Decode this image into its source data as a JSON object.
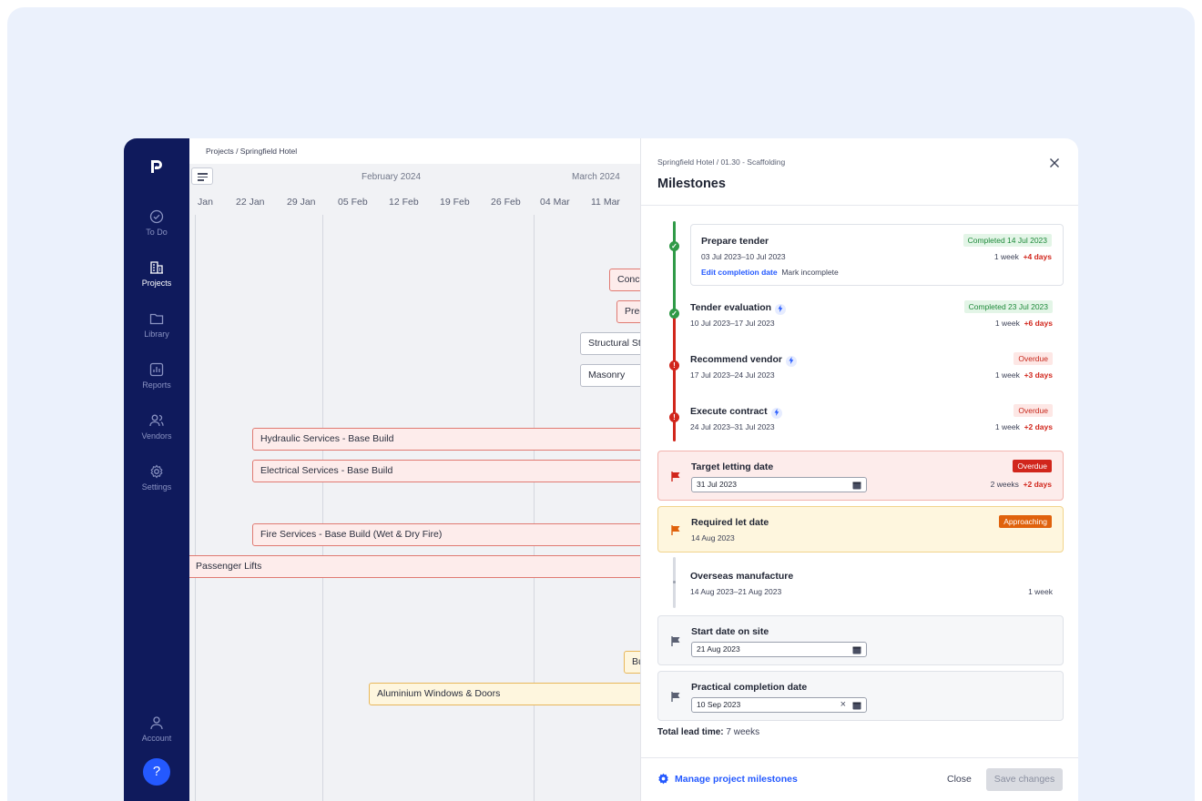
{
  "sidebar": {
    "logo": "ᴩ",
    "items": [
      {
        "label": "To Do",
        "icon": "check-circle-icon"
      },
      {
        "label": "Projects",
        "icon": "building-icon",
        "active": true
      },
      {
        "label": "Library",
        "icon": "folder-icon"
      },
      {
        "label": "Reports",
        "icon": "chart-icon"
      },
      {
        "label": "Vendors",
        "icon": "users-icon"
      },
      {
        "label": "Settings",
        "icon": "gear-icon"
      }
    ],
    "account": "Account",
    "help": "?"
  },
  "gantt": {
    "breadcrumb": "Projects  /  Springfield Hotel",
    "months": [
      "February 2024",
      "March 2024"
    ],
    "weeks": [
      "Jan",
      "22 Jan",
      "29 Jan",
      "05 Feb",
      "12 Feb",
      "19 Feb",
      "26 Feb",
      "04 Mar",
      "11 Mar"
    ],
    "bars": [
      "Concr",
      "Prec",
      "Structural St",
      "Masonry",
      "Hydraulic Services - Base Build",
      "Electrical Services - Base Build",
      "Fire Services - Base Build (Wet & Dry Fire)",
      "Passenger Lifts",
      "Bu",
      "Aluminium Windows & Doors"
    ]
  },
  "panel": {
    "breadcrumb": "Springfield Hotel  /  01.30 - Scaffolding",
    "title": "Milestones",
    "milestones": [
      {
        "name": "Prepare tender",
        "dates": "03 Jul 2023–10 Jul 2023",
        "badge": "Completed 14 Jul 2023",
        "duration": "1 week",
        "delta": "+4 days",
        "edit_link": "Edit completion date",
        "mark_link": "Mark incomplete"
      },
      {
        "name": "Tender evaluation",
        "dates": "10 Jul 2023–17 Jul 2023",
        "badge": "Completed 23 Jul 2023",
        "duration": "1 week",
        "delta": "+6 days"
      },
      {
        "name": "Recommend vendor",
        "dates": "17 Jul 2023–24 Jul 2023",
        "badge": "Overdue",
        "duration": "1 week",
        "delta": "+3 days"
      },
      {
        "name": "Execute contract",
        "dates": "24 Jul 2023–31 Jul 2023",
        "badge": "Overdue",
        "duration": "1 week",
        "delta": "+2 days"
      },
      {
        "name": "Target letting date",
        "date_value": "31 Jul 2023",
        "badge": "Overdue",
        "duration": "2 weeks",
        "delta": "+2 days"
      },
      {
        "name": "Required let date",
        "dates": "14 Aug 2023",
        "badge": "Approaching"
      },
      {
        "name": "Overseas manufacture",
        "dates": "14 Aug 2023–21 Aug 2023",
        "duration": "1 week"
      },
      {
        "name": "Start date on site",
        "date_value": "21 Aug 2023"
      },
      {
        "name": "Practical completion date",
        "date_value": "10 Sep 2023"
      }
    ],
    "total_label": "Total lead time:",
    "total_value": "7 weeks",
    "manage": "Manage project milestones",
    "close": "Close",
    "save": "Save changes"
  },
  "colors": {
    "sidebar": "#0f1a5c",
    "accent": "#2459ff",
    "complete": "#1e8a3a",
    "overdue": "#d1261c",
    "approaching": "#e0620c"
  }
}
